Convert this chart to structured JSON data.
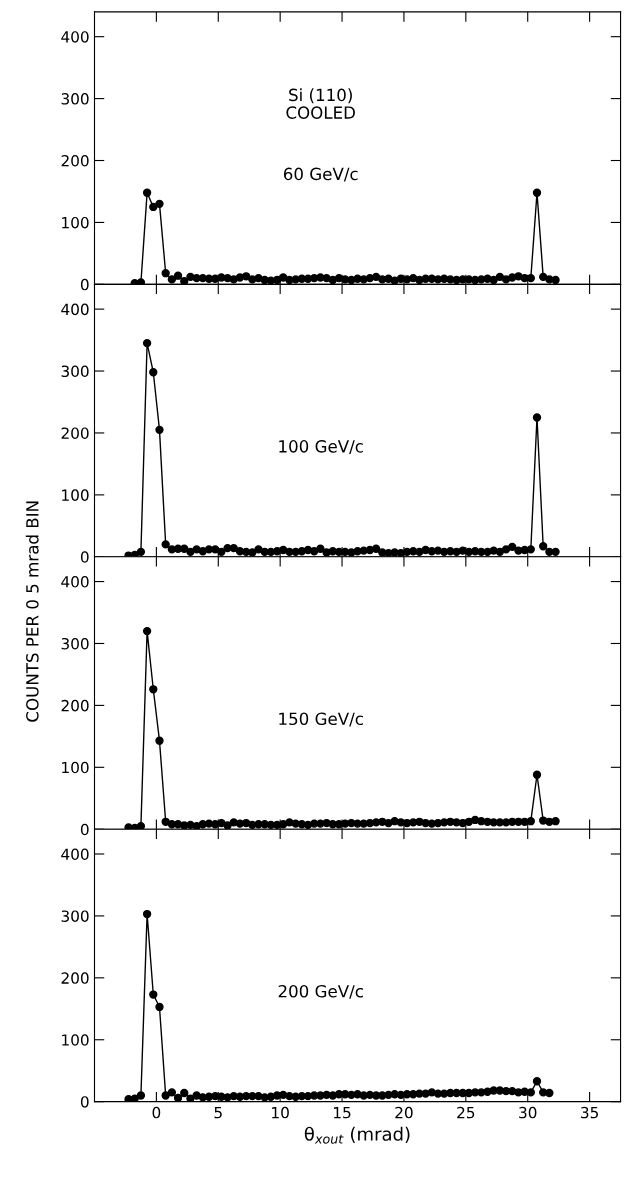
{
  "chart_data": [
    {
      "type": "line",
      "annotations": [
        "Si (110)",
        "COOLED",
        "60 GeV/c"
      ],
      "xlim": [
        -5,
        37.5
      ],
      "ylim": [
        0,
        440
      ],
      "xticks": [
        0,
        5,
        10,
        15,
        20,
        25,
        30,
        35
      ],
      "yticks": [
        0,
        100,
        200,
        300,
        400
      ],
      "tick_labels": "y",
      "marker": "circle",
      "line_style": "solid",
      "grid": false,
      "legend": false,
      "x": [
        -1.75,
        -1.25,
        -0.75,
        -0.25,
        0.25,
        0.75,
        1.25,
        1.75,
        2.25,
        2.75,
        3.25,
        3.75,
        4.25,
        4.75,
        5.25,
        5.75,
        6.25,
        6.75,
        7.25,
        7.75,
        8.25,
        8.75,
        9.25,
        9.75,
        10.25,
        10.75,
        11.25,
        11.75,
        12.25,
        12.75,
        13.25,
        13.75,
        14.25,
        14.75,
        15.25,
        15.75,
        16.25,
        16.75,
        17.25,
        17.75,
        18.25,
        18.75,
        19.25,
        19.75,
        20.25,
        20.75,
        21.25,
        21.75,
        22.25,
        22.75,
        23.25,
        23.75,
        24.25,
        24.75,
        25.25,
        25.75,
        26.25,
        26.75,
        27.25,
        27.75,
        28.25,
        28.75,
        29.25,
        29.75,
        30.25,
        30.75,
        31.25,
        31.75,
        32.25
      ],
      "series": [
        {
          "color": "#000000",
          "values": [
            2,
            3,
            148,
            125,
            130,
            18,
            8,
            14,
            5,
            12,
            10,
            10,
            9,
            9,
            11,
            10,
            8,
            11,
            13,
            8,
            10,
            7,
            6,
            7,
            11,
            7,
            8,
            9,
            9,
            10,
            11,
            10,
            7,
            10,
            8,
            7,
            9,
            8,
            10,
            12,
            8,
            9,
            6,
            9,
            8,
            10,
            7,
            9,
            9,
            8,
            9,
            8,
            7,
            8,
            8,
            7,
            8,
            9,
            7,
            12,
            8,
            11,
            13,
            10,
            10,
            148,
            12,
            8,
            7
          ]
        }
      ]
    },
    {
      "type": "line",
      "annotations": [
        "100 GeV/c"
      ],
      "xlim": [
        -5,
        37.5
      ],
      "ylim": [
        0,
        440
      ],
      "xticks": [
        0,
        5,
        10,
        15,
        20,
        25,
        30,
        35
      ],
      "yticks": [
        0,
        100,
        200,
        300,
        400
      ],
      "tick_labels": "y",
      "marker": "circle",
      "line_style": "solid",
      "grid": false,
      "legend": false,
      "x": [
        -2.25,
        -1.75,
        -1.25,
        -0.75,
        -0.25,
        0.25,
        0.75,
        1.25,
        1.75,
        2.25,
        2.75,
        3.25,
        3.75,
        4.25,
        4.75,
        5.25,
        5.75,
        6.25,
        6.75,
        7.25,
        7.75,
        8.25,
        8.75,
        9.25,
        9.75,
        10.25,
        10.75,
        11.25,
        11.75,
        12.25,
        12.75,
        13.25,
        13.75,
        14.25,
        14.75,
        15.25,
        15.75,
        16.25,
        16.75,
        17.25,
        17.75,
        18.25,
        18.75,
        19.25,
        19.75,
        20.25,
        20.75,
        21.25,
        21.75,
        22.25,
        22.75,
        23.25,
        23.75,
        24.25,
        24.75,
        25.25,
        25.75,
        26.25,
        26.75,
        27.25,
        27.75,
        28.25,
        28.75,
        29.25,
        29.75,
        30.25,
        30.75,
        31.25,
        31.75,
        32.25
      ],
      "series": [
        {
          "color": "#000000",
          "values": [
            2,
            3,
            8,
            345,
            298,
            205,
            20,
            12,
            13,
            13,
            8,
            12,
            9,
            12,
            12,
            8,
            14,
            14,
            9,
            8,
            7,
            12,
            8,
            8,
            9,
            11,
            8,
            8,
            9,
            11,
            9,
            13,
            7,
            9,
            8,
            8,
            7,
            9,
            10,
            11,
            13,
            7,
            6,
            7,
            6,
            8,
            9,
            8,
            11,
            9,
            10,
            8,
            9,
            8,
            10,
            8,
            9,
            8,
            8,
            10,
            8,
            12,
            16,
            10,
            11,
            12,
            225,
            17,
            8,
            8
          ]
        }
      ]
    },
    {
      "type": "line",
      "ylabel": "COUNTS PER 0 5 mrad BIN",
      "annotations": [
        "150 GeV/c"
      ],
      "xlim": [
        -5,
        37.5
      ],
      "ylim": [
        0,
        440
      ],
      "xticks": [
        0,
        5,
        10,
        15,
        20,
        25,
        30,
        35
      ],
      "yticks": [
        0,
        100,
        200,
        300,
        400
      ],
      "tick_labels": "y",
      "marker": "circle",
      "line_style": "solid",
      "grid": false,
      "legend": false,
      "x": [
        -2.25,
        -1.75,
        -1.25,
        -0.75,
        -0.25,
        0.25,
        0.75,
        1.25,
        1.75,
        2.25,
        2.75,
        3.25,
        3.75,
        4.25,
        4.75,
        5.25,
        5.75,
        6.25,
        6.75,
        7.25,
        7.75,
        8.25,
        8.75,
        9.25,
        9.75,
        10.25,
        10.75,
        11.25,
        11.75,
        12.25,
        12.75,
        13.25,
        13.75,
        14.25,
        14.75,
        15.25,
        15.75,
        16.25,
        16.75,
        17.25,
        17.75,
        18.25,
        18.75,
        19.25,
        19.75,
        20.25,
        20.75,
        21.25,
        21.75,
        22.25,
        22.75,
        23.25,
        23.75,
        24.25,
        24.75,
        25.25,
        25.75,
        26.25,
        26.75,
        27.25,
        27.75,
        28.25,
        28.75,
        29.25,
        29.75,
        30.25,
        30.75,
        31.25,
        31.75,
        32.25
      ],
      "series": [
        {
          "color": "#000000",
          "values": [
            3,
            2,
            5,
            320,
            226,
            143,
            12,
            8,
            8,
            6,
            7,
            5,
            8,
            9,
            8,
            10,
            6,
            11,
            9,
            10,
            7,
            8,
            8,
            7,
            7,
            8,
            11,
            9,
            8,
            7,
            9,
            9,
            10,
            8,
            8,
            9,
            10,
            9,
            9,
            10,
            11,
            12,
            10,
            13,
            11,
            10,
            11,
            12,
            10,
            9,
            10,
            11,
            12,
            11,
            10,
            12,
            15,
            13,
            12,
            11,
            11,
            11,
            12,
            12,
            12,
            13,
            88,
            14,
            12,
            13
          ]
        }
      ]
    },
    {
      "type": "line",
      "xlabel": "θ$_{xout}$ (mrad)",
      "annotations": [
        "200 GeV/c"
      ],
      "xlim": [
        -5,
        37.5
      ],
      "ylim": [
        0,
        440
      ],
      "xticks": [
        0,
        5,
        10,
        15,
        20,
        25,
        30,
        35
      ],
      "yticks": [
        0,
        100,
        200,
        300,
        400
      ],
      "marker": "circle",
      "line_style": "solid",
      "grid": false,
      "legend": false,
      "x": [
        -2.25,
        -1.75,
        -1.25,
        -0.75,
        -0.25,
        0.25,
        0.75,
        1.25,
        1.75,
        2.25,
        2.75,
        3.25,
        3.75,
        4.25,
        4.75,
        5.25,
        5.75,
        6.25,
        6.75,
        7.25,
        7.75,
        8.25,
        8.75,
        9.25,
        9.75,
        10.25,
        10.75,
        11.25,
        11.75,
        12.25,
        12.75,
        13.25,
        13.75,
        14.25,
        14.75,
        15.25,
        15.75,
        16.25,
        16.75,
        17.25,
        17.75,
        18.25,
        18.75,
        19.25,
        19.75,
        20.25,
        20.75,
        21.25,
        21.75,
        22.25,
        22.75,
        23.25,
        23.75,
        24.25,
        24.75,
        25.25,
        25.75,
        26.25,
        26.75,
        27.25,
        27.75,
        28.25,
        28.75,
        29.25,
        29.75,
        30.25,
        30.75,
        31.25,
        31.75
      ],
      "series": [
        {
          "color": "#000000",
          "values": [
            4,
            5,
            10,
            303,
            173,
            153,
            10,
            15,
            6,
            14,
            5,
            10,
            7,
            8,
            9,
            8,
            7,
            9,
            8,
            9,
            9,
            9,
            7,
            8,
            10,
            11,
            9,
            8,
            9,
            9,
            10,
            10,
            11,
            10,
            12,
            12,
            11,
            12,
            10,
            11,
            10,
            10,
            11,
            12,
            11,
            12,
            12,
            13,
            13,
            15,
            13,
            13,
            14,
            14,
            14,
            14,
            15,
            15,
            16,
            18,
            18,
            17,
            17,
            15,
            16,
            15,
            33,
            15,
            14
          ]
        }
      ]
    }
  ]
}
